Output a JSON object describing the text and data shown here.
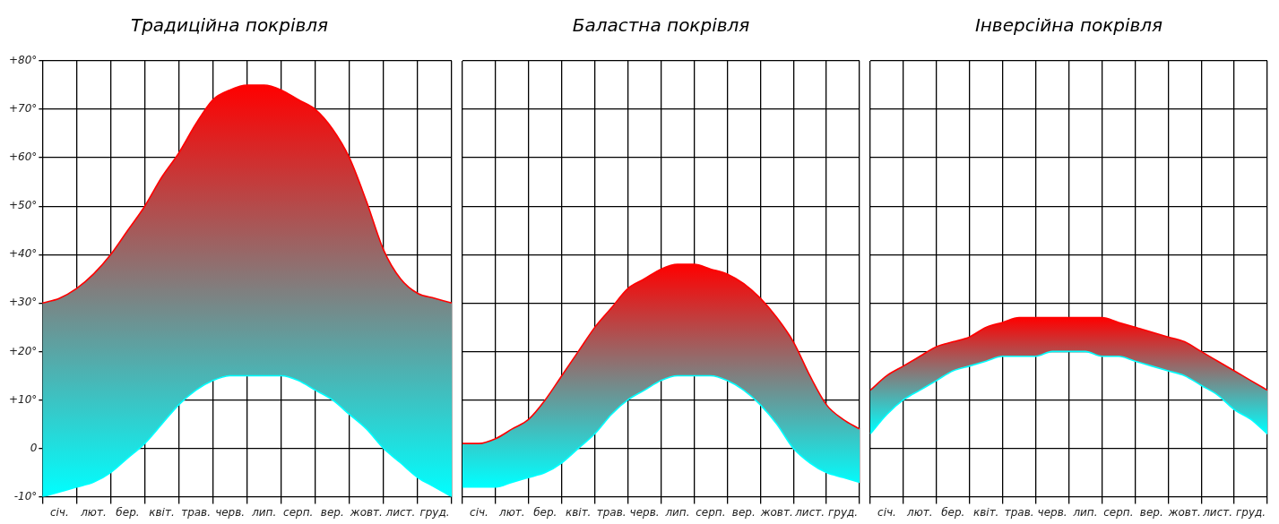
{
  "chart_data": [
    {
      "type": "line",
      "title": "Традиційна покрівля",
      "categories": [
        null,
        "січ.",
        null,
        "лют.",
        null,
        "бер.",
        null,
        "квіт.",
        null,
        "трав.",
        null,
        "черв.",
        null,
        "лип.",
        null,
        "серп.",
        null,
        "вер.",
        null,
        "жовт.",
        null,
        "лист.",
        null,
        "груд.",
        null
      ],
      "ylim": [
        -10,
        80
      ],
      "yticks": [
        {
          "value": -10,
          "label": "-10°"
        },
        0,
        {
          "value": 10,
          "label": "+10°"
        },
        {
          "value": 20,
          "label": "+20°"
        },
        {
          "value": 30,
          "label": "+30°"
        },
        {
          "value": 40,
          "label": "+40°"
        },
        {
          "value": 50,
          "label": "+50°"
        },
        {
          "value": 60,
          "label": "+60°"
        },
        {
          "value": 70,
          "label": "+70°"
        },
        {
          "value": 80,
          "label": "+80°"
        }
      ],
      "grid": true,
      "series": [
        {
          "color": "#00ffff",
          "values": [
            -10,
            -9,
            -8,
            -7,
            -5,
            -2,
            1,
            5,
            9,
            12,
            14,
            15,
            15,
            15,
            15,
            14,
            12,
            10,
            7,
            4,
            0,
            -3,
            -6,
            -8,
            -10
          ]
        },
        {
          "color": "#ff0000",
          "values": [
            30,
            31,
            33,
            36,
            40,
            45,
            50,
            56,
            61,
            67,
            72,
            74,
            75,
            75,
            74,
            72,
            70,
            66,
            60,
            51,
            41,
            35,
            32,
            31,
            30
          ],
          "lower": [
            -10,
            -9,
            -8,
            -7,
            -5,
            -2,
            1,
            5,
            9,
            12,
            14,
            15,
            15,
            15,
            15,
            14,
            12,
            10,
            7,
            4,
            0,
            -3,
            -6,
            -8,
            -10
          ],
          "upper": [
            30,
            31,
            33,
            36,
            40,
            45,
            50,
            56,
            61,
            67,
            72,
            74,
            75,
            75,
            74,
            72,
            70,
            66,
            60,
            51,
            41,
            35,
            32,
            31,
            30
          ]
        }
      ]
    },
    {
      "type": "line",
      "title": "Баластна покрівля",
      "tick_labels": "x",
      "categories": [
        null,
        "січ.",
        null,
        "лют.",
        null,
        "бер.",
        null,
        "квіт.",
        null,
        "трав.",
        null,
        "черв.",
        null,
        "лип.",
        null,
        "серп.",
        null,
        "вер.",
        null,
        "жовт.",
        null,
        "лист.",
        null,
        "груд.",
        null
      ],
      "ylim": [
        -10,
        80
      ],
      "yticks": [
        -10,
        0,
        10,
        20,
        30,
        40,
        50,
        60,
        70,
        80
      ],
      "grid": true,
      "series": [
        {
          "color": "#00ffff",
          "values": [
            -8,
            -8,
            -8,
            -7,
            -6,
            -5,
            -3,
            0,
            3,
            7,
            10,
            12,
            14,
            15,
            15,
            15,
            14,
            12,
            9,
            5,
            0,
            -3,
            -5,
            -6,
            -7
          ]
        },
        {
          "color": "#ff0000",
          "values": [
            1,
            1,
            2,
            4,
            6,
            10,
            15,
            20,
            25,
            29,
            33,
            35,
            37,
            38,
            38,
            37,
            36,
            34,
            31,
            27,
            22,
            15,
            9,
            6,
            4
          ],
          "lower": [
            -8,
            -8,
            -8,
            -7,
            -6,
            -5,
            -3,
            0,
            3,
            7,
            10,
            12,
            14,
            15,
            15,
            15,
            14,
            12,
            9,
            5,
            0,
            -3,
            -5,
            -6,
            -7
          ],
          "upper": [
            1,
            1,
            2,
            4,
            6,
            10,
            15,
            20,
            25,
            29,
            33,
            35,
            37,
            38,
            38,
            37,
            36,
            34,
            31,
            27,
            22,
            15,
            9,
            6,
            4
          ]
        }
      ]
    },
    {
      "type": "line",
      "title": "Інверсійна покрівля",
      "tick_labels": "x",
      "categories": [
        null,
        "січ.",
        null,
        "лют.",
        null,
        "бер.",
        null,
        "квіт.",
        null,
        "трав.",
        null,
        "черв.",
        null,
        "лип.",
        null,
        "серп.",
        null,
        "вер.",
        null,
        "жовт.",
        null,
        "лист.",
        null,
        "груд.",
        null
      ],
      "ylim": [
        -10,
        80
      ],
      "yticks": [
        -10,
        0,
        10,
        20,
        30,
        40,
        50,
        60,
        70,
        80
      ],
      "grid": true,
      "series": [
        {
          "color": "#00ffff",
          "values": [
            3,
            7,
            10,
            12,
            14,
            16,
            17,
            18,
            19,
            19,
            19,
            20,
            20,
            20,
            19,
            19,
            18,
            17,
            16,
            15,
            13,
            11,
            8,
            6,
            3
          ]
        },
        {
          "color": "#ff0000",
          "values": [
            12,
            15,
            17,
            19,
            21,
            22,
            23,
            25,
            26,
            27,
            27,
            27,
            27,
            27,
            27,
            26,
            25,
            24,
            23,
            22,
            20,
            18,
            16,
            14,
            12
          ],
          "lower": [
            3,
            7,
            10,
            12,
            14,
            16,
            17,
            18,
            19,
            19,
            19,
            20,
            20,
            20,
            19,
            19,
            18,
            17,
            16,
            15,
            13,
            11,
            8,
            6,
            3
          ],
          "upper": [
            12,
            15,
            17,
            19,
            21,
            22,
            23,
            25,
            26,
            27,
            27,
            27,
            27,
            27,
            27,
            26,
            25,
            24,
            23,
            22,
            20,
            18,
            16,
            14,
            12
          ]
        }
      ]
    }
  ]
}
